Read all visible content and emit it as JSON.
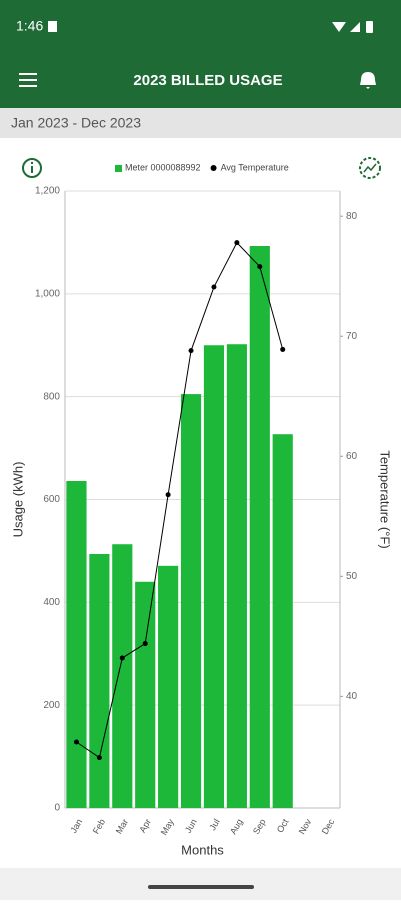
{
  "status_bar": {
    "time": "1:46"
  },
  "app_bar": {
    "title": "2023 BILLED USAGE"
  },
  "date_range": "Jan 2023 - Dec 2023",
  "chart_data": {
    "type": "bar",
    "categories": [
      "Jan",
      "Feb",
      "Mar",
      "Apr",
      "May",
      "Jun",
      "Jul",
      "Aug",
      "Sep",
      "Oct",
      "Nov",
      "Dec"
    ],
    "series": [
      {
        "name": "Meter 0000088992",
        "color": "#1db83a",
        "values": [
          636,
          494,
          513,
          440,
          471,
          805,
          900,
          902,
          1093,
          727,
          null,
          null
        ]
      },
      {
        "name": "Avg Temperature",
        "color": "#000000",
        "type": "line",
        "axis": "y2",
        "values": [
          36.2,
          34.9,
          43.2,
          44.4,
          56.8,
          68.8,
          74.1,
          77.8,
          75.8,
          68.9,
          null,
          null
        ]
      }
    ],
    "xlabel": "Months",
    "ylabel": "Usage (kWh)",
    "y2label": "Temperature (°F)",
    "ylim": [
      0,
      1200
    ],
    "yticks": [
      0,
      200,
      400,
      600,
      800,
      {
        "value": 1000,
        "label": "1,000"
      },
      {
        "value": 1200,
        "label": "1,200"
      }
    ],
    "y2lim": [
      30.7,
      82.1
    ],
    "y2ticks": [
      40,
      50,
      60,
      70,
      80
    ],
    "grid": true,
    "legend": "top"
  }
}
